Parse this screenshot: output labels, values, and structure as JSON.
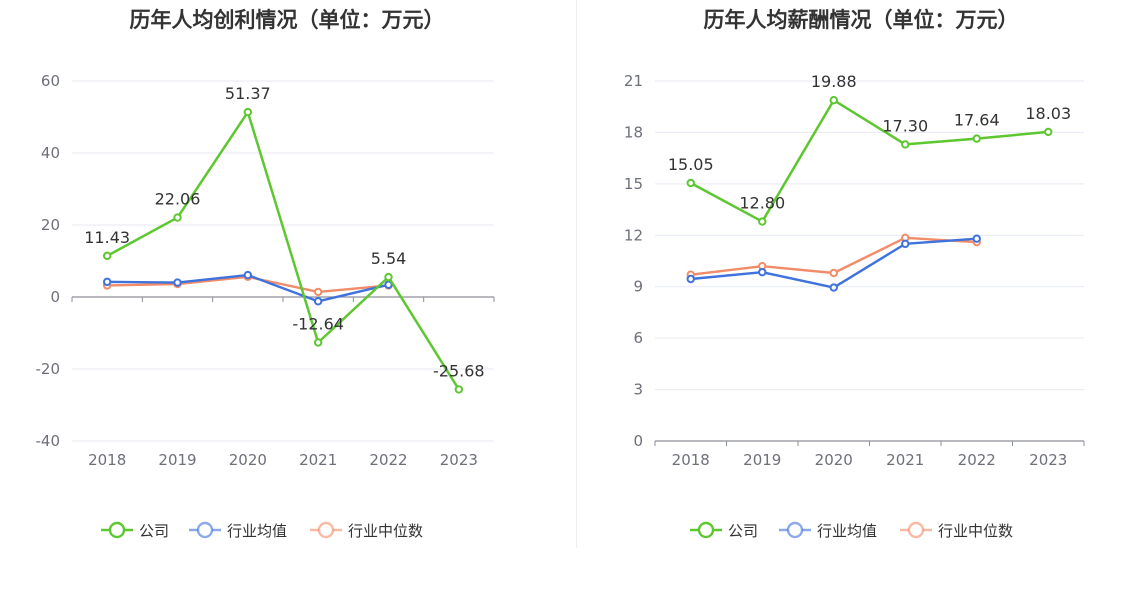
{
  "charts": [
    {
      "title": "历年人均创利情况（单位：万元）",
      "chart_data": {
        "type": "line",
        "categories": [
          "2018",
          "2019",
          "2020",
          "2021",
          "2022",
          "2023"
        ],
        "ylim": [
          -40,
          60
        ],
        "yticks": [
          60,
          40,
          20,
          0,
          -20,
          -40
        ],
        "tick_labels": [
          "60",
          "40",
          "20",
          "0",
          "-20",
          "-40"
        ],
        "grid": true,
        "legend_position": "bottom-center",
        "series": [
          {
            "name": "公司",
            "color": "#5dc730",
            "values": [
              11.43,
              22.06,
              51.37,
              -12.64,
              5.54,
              -25.68
            ],
            "labels": [
              "11.43",
              "22.06",
              "51.37",
              "-12.64",
              "5.54",
              "-25.68"
            ]
          },
          {
            "name": "行业均值",
            "color": "#3f72dc",
            "values": [
              4.2,
              4.0,
              6.1,
              -1.2,
              3.4,
              null
            ]
          },
          {
            "name": "行业中位数",
            "color": "#f28c68",
            "values": [
              3.2,
              3.6,
              5.6,
              1.4,
              3.2,
              null
            ]
          }
        ]
      }
    },
    {
      "title": "历年人均薪酬情况（单位：万元）",
      "chart_data": {
        "type": "line",
        "categories": [
          "2018",
          "2019",
          "2020",
          "2021",
          "2022",
          "2023"
        ],
        "ylim": [
          0,
          21
        ],
        "yticks": [
          21,
          18,
          15,
          12,
          9,
          6,
          3,
          0
        ],
        "tick_labels": [
          "21",
          "18",
          "15",
          "12",
          "9",
          "6",
          "3",
          "0"
        ],
        "grid": true,
        "legend_position": "bottom-center",
        "series": [
          {
            "name": "公司",
            "color": "#5dc730",
            "values": [
              15.05,
              12.8,
              19.88,
              17.3,
              17.64,
              18.03
            ],
            "labels": [
              "15.05",
              "12.80",
              "19.88",
              "17.30",
              "17.64",
              "18.03"
            ]
          },
          {
            "name": "行业均值",
            "color": "#3f72dc",
            "values": [
              9.45,
              9.85,
              8.95,
              11.5,
              11.8,
              null
            ]
          },
          {
            "name": "行业中位数",
            "color": "#f28c68",
            "values": [
              9.7,
              10.2,
              9.8,
              11.85,
              11.6,
              null
            ]
          }
        ]
      }
    }
  ]
}
